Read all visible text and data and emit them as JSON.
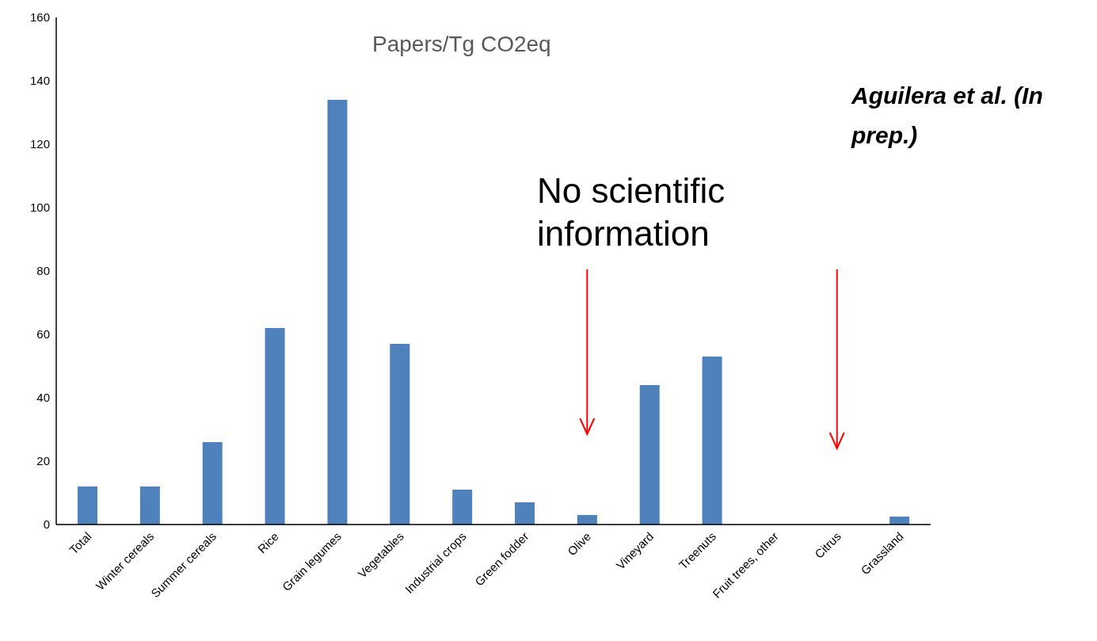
{
  "chart_data": {
    "type": "bar",
    "title": "Papers/Tg CO2eq",
    "categories": [
      "Total",
      "Winter cereals",
      "Summer cereals",
      "Rice",
      "Grain legumes",
      "Vegetables",
      "Industrial crops",
      "Green fodder",
      "Olive",
      "Vineyard",
      "Treenuts",
      "Fruit trees, other",
      "Citrus",
      "Grassland"
    ],
    "values": [
      12,
      12,
      26,
      62,
      134,
      57,
      11,
      7,
      3,
      44,
      53,
      0,
      0,
      2.5
    ],
    "color": "#4f81bd",
    "ylim": [
      0,
      160
    ],
    "yticks": [
      0,
      20,
      40,
      60,
      80,
      100,
      120,
      140,
      160
    ],
    "grid": false,
    "annotations": [
      "No scientific information",
      "Aguilera et al. (In prep.)"
    ]
  }
}
